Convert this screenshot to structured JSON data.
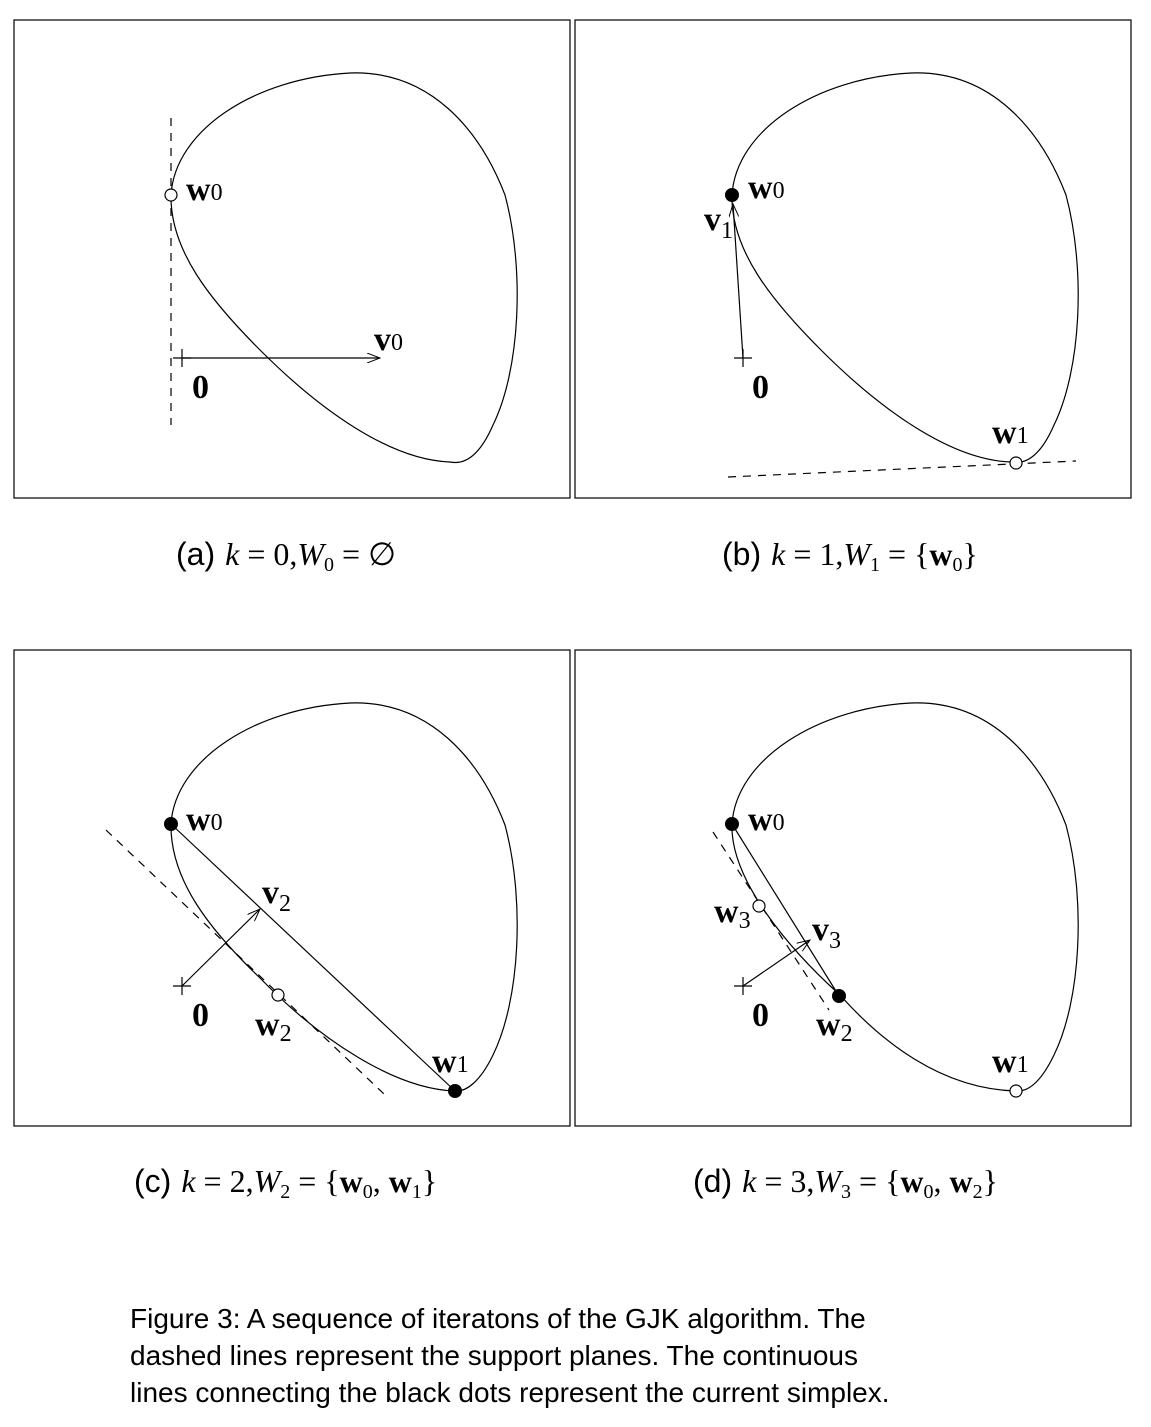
{
  "panels": [
    {
      "id": "a",
      "labels": {
        "w0": "w",
        "w0_sub": "0",
        "v": "v",
        "v_sub": "0",
        "origin": "0"
      },
      "caption": {
        "tag": "(a)",
        "k": "k",
        "eq1": " = 0,",
        "W": "W",
        "W_sub": "0",
        "eq2": " = ∅"
      }
    },
    {
      "id": "b",
      "labels": {
        "w0": "w",
        "w0_sub": "0",
        "w1": "w",
        "w1_sub": "1",
        "v": "v",
        "v_sub": "1",
        "origin": "0"
      },
      "caption": {
        "tag": "(b)",
        "k": "k",
        "eq1": " = 1,",
        "W": "W",
        "W_sub": "1",
        "eq2": " = {",
        "m1": "w",
        "m1_sub": "0",
        "close": "}"
      }
    },
    {
      "id": "c",
      "labels": {
        "w0": "w",
        "w0_sub": "0",
        "w1": "w",
        "w1_sub": "1",
        "w2": "w",
        "w2_sub": "2",
        "v": "v",
        "v_sub": "2",
        "origin": "0"
      },
      "caption": {
        "tag": "(c)",
        "k": "k",
        "eq1": " = 2,",
        "W": "W",
        "W_sub": "2",
        "eq2": " = {",
        "m1": "w",
        "m1_sub": "0",
        "sep": ", ",
        "m2": "w",
        "m2_sub": "1",
        "close": "}"
      }
    },
    {
      "id": "d",
      "labels": {
        "w0": "w",
        "w0_sub": "0",
        "w1": "w",
        "w1_sub": "1",
        "w2": "w",
        "w2_sub": "2",
        "w3": "w",
        "w3_sub": "3",
        "v": "v",
        "v_sub": "3",
        "origin": "0"
      },
      "caption": {
        "tag": "(d)",
        "k": "k",
        "eq1": " = 3,",
        "W": "W",
        "W_sub": "3",
        "eq2": " = {",
        "m1": "w",
        "m1_sub": "0",
        "sep": ", ",
        "m2": "w",
        "m2_sub": "2",
        "close": "}"
      }
    }
  ],
  "figure_caption": {
    "line1": "Figure 3: A sequence of iteratons of the GJK algorithm. The",
    "line2": "dashed lines represent the support planes. The continuous",
    "line3": "lines connecting the black dots represent the current simplex."
  }
}
